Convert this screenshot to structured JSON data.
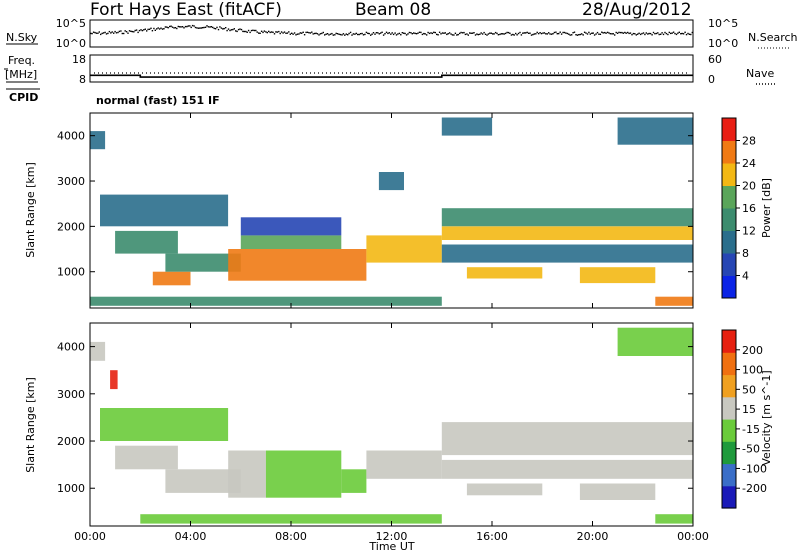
{
  "header": {
    "station": "Fort Hays East (fitACF)",
    "beam": "Beam 08",
    "date": "28/Aug/2012"
  },
  "noise_panel": {
    "left_label": "N.Sky",
    "left_ticks": [
      "10^5",
      "10^0"
    ],
    "right_ticks": [
      "10^5",
      "10^0"
    ],
    "right_label": "N.Search"
  },
  "freq_panel": {
    "left_label_line1": "Freq.",
    "left_label_line2": "[MHz]",
    "left_ticks": [
      "18",
      "8"
    ],
    "right_ticks": [
      "60",
      "0"
    ],
    "right_label": "Nave",
    "cpid_label": "CPID",
    "cpid_text": "normal (fast) 151 IF",
    "freq_steps": [
      {
        "t": 0.0,
        "mhz": 10.5
      },
      {
        "t": 2.0,
        "mhz": 10.5
      },
      {
        "t": 2.0,
        "mhz": 9.8
      },
      {
        "t": 14.0,
        "mhz": 9.8
      },
      {
        "t": 14.0,
        "mhz": 10.5
      },
      {
        "t": 24.0,
        "mhz": 10.5
      }
    ]
  },
  "colors": {
    "power": [
      "#0b24e6",
      "#2646b4",
      "#2a6e8c",
      "#3c8c6e",
      "#5aa55a",
      "#f3b814",
      "#f07a14",
      "#e81e14"
    ],
    "velocity": [
      "#1a1ab8",
      "#3a6ec8",
      "#1f9a3c",
      "#6acb3a",
      "#c8c8c0",
      "#f0a020",
      "#f07010",
      "#e62010"
    ]
  },
  "chart_data": [
    {
      "type": "heatmap",
      "quantity": "Power",
      "ylabel": "Slant Range [km]",
      "xlim": [
        0,
        24
      ],
      "ylim": [
        200,
        4500
      ],
      "yticks": [
        "4000",
        "3000",
        "2000",
        "1000"
      ],
      "colorbar_label": "Power [dB]",
      "colorbar_ticks": [
        "28",
        "24",
        "20",
        "16",
        "12",
        "8",
        "4"
      ],
      "colorbar_range": [
        0,
        32
      ],
      "regions": [
        {
          "t0": 0.0,
          "t1": 0.6,
          "r0": 3700,
          "r1": 4100,
          "value": 8
        },
        {
          "t0": 0.4,
          "t1": 5.5,
          "r0": 2000,
          "r1": 2700,
          "value": 11
        },
        {
          "t0": 1.0,
          "t1": 3.5,
          "r0": 1400,
          "r1": 1900,
          "value": 14
        },
        {
          "t0": 2.5,
          "t1": 4.0,
          "r0": 700,
          "r1": 1000,
          "value": 24
        },
        {
          "t0": 3.0,
          "t1": 6.0,
          "r0": 1000,
          "r1": 1400,
          "value": 14
        },
        {
          "t0": 5.5,
          "t1": 11.0,
          "r0": 800,
          "r1": 1500,
          "value": 26
        },
        {
          "t0": 6.0,
          "t1": 10.0,
          "r0": 1500,
          "r1": 1800,
          "value": 18
        },
        {
          "t0": 6.0,
          "t1": 10.0,
          "r0": 1800,
          "r1": 2200,
          "value": 6
        },
        {
          "t0": 11.0,
          "t1": 14.0,
          "r0": 1200,
          "r1": 1800,
          "value": 20
        },
        {
          "t0": 11.5,
          "t1": 12.5,
          "r0": 2800,
          "r1": 3200,
          "value": 8
        },
        {
          "t0": 14.0,
          "t1": 24.0,
          "r0": 2000,
          "r1": 2400,
          "value": 12
        },
        {
          "t0": 14.0,
          "t1": 24.0,
          "r0": 1700,
          "r1": 2000,
          "value": 20
        },
        {
          "t0": 14.0,
          "t1": 24.0,
          "r0": 1200,
          "r1": 1600,
          "value": 10
        },
        {
          "t0": 15.0,
          "t1": 18.0,
          "r0": 850,
          "r1": 1100,
          "value": 20
        },
        {
          "t0": 19.5,
          "t1": 22.5,
          "r0": 750,
          "r1": 1100,
          "value": 22
        },
        {
          "t0": 14.0,
          "t1": 16.0,
          "r0": 4000,
          "r1": 4400,
          "value": 8
        },
        {
          "t0": 21.0,
          "t1": 24.0,
          "r0": 3800,
          "r1": 4400,
          "value": 10
        },
        {
          "t0": 0.0,
          "t1": 14.0,
          "r0": 250,
          "r1": 450,
          "value": 12
        },
        {
          "t0": 22.5,
          "t1": 24.0,
          "r0": 250,
          "r1": 450,
          "value": 24
        }
      ]
    },
    {
      "type": "heatmap",
      "quantity": "Velocity",
      "ylabel": "Slant Range [km]",
      "xlabel": "Time UT",
      "xlim": [
        0,
        24
      ],
      "ylim": [
        200,
        4500
      ],
      "xticks": [
        "00:00",
        "04:00",
        "08:00",
        "12:00",
        "16:00",
        "20:00",
        "00:00"
      ],
      "yticks": [
        "4000",
        "3000",
        "2000",
        "1000"
      ],
      "colorbar_label": "Velocity [m s^-1]",
      "colorbar_ticks": [
        "200",
        "100",
        "50",
        "15",
        "-15",
        "-50",
        "-100",
        "-200"
      ],
      "colorbar_range": [
        -250,
        250
      ],
      "regions": [
        {
          "t0": 0.0,
          "t1": 0.6,
          "r0": 3700,
          "r1": 4100,
          "value": 0
        },
        {
          "t0": 0.8,
          "t1": 1.1,
          "r0": 3100,
          "r1": 3500,
          "value": 200
        },
        {
          "t0": 0.4,
          "t1": 5.5,
          "r0": 2000,
          "r1": 2700,
          "value": -30
        },
        {
          "t0": 1.0,
          "t1": 3.5,
          "r0": 1400,
          "r1": 1900,
          "value": 0
        },
        {
          "t0": 3.0,
          "t1": 6.0,
          "r0": 900,
          "r1": 1400,
          "value": 30
        },
        {
          "t0": 5.5,
          "t1": 7.0,
          "r0": 800,
          "r1": 1800,
          "value": 30
        },
        {
          "t0": 7.0,
          "t1": 10.0,
          "r0": 800,
          "r1": 1800,
          "value": -30
        },
        {
          "t0": 10.0,
          "t1": 11.0,
          "r0": 900,
          "r1": 1400,
          "value": -30
        },
        {
          "t0": 11.0,
          "t1": 14.0,
          "r0": 1200,
          "r1": 1800,
          "value": 30
        },
        {
          "t0": 14.0,
          "t1": 24.0,
          "r0": 1700,
          "r1": 2400,
          "value": 0
        },
        {
          "t0": 14.0,
          "t1": 24.0,
          "r0": 1200,
          "r1": 1600,
          "value": 0
        },
        {
          "t0": 15.0,
          "t1": 18.0,
          "r0": 850,
          "r1": 1100,
          "value": 0
        },
        {
          "t0": 19.5,
          "t1": 22.5,
          "r0": 750,
          "r1": 1100,
          "value": 0
        },
        {
          "t0": 21.0,
          "t1": 24.0,
          "r0": 3800,
          "r1": 4400,
          "value": -30
        },
        {
          "t0": 2.0,
          "t1": 14.0,
          "r0": 250,
          "r1": 450,
          "value": -30
        },
        {
          "t0": 22.5,
          "t1": 24.0,
          "r0": 250,
          "r1": 450,
          "value": -30
        }
      ]
    }
  ]
}
